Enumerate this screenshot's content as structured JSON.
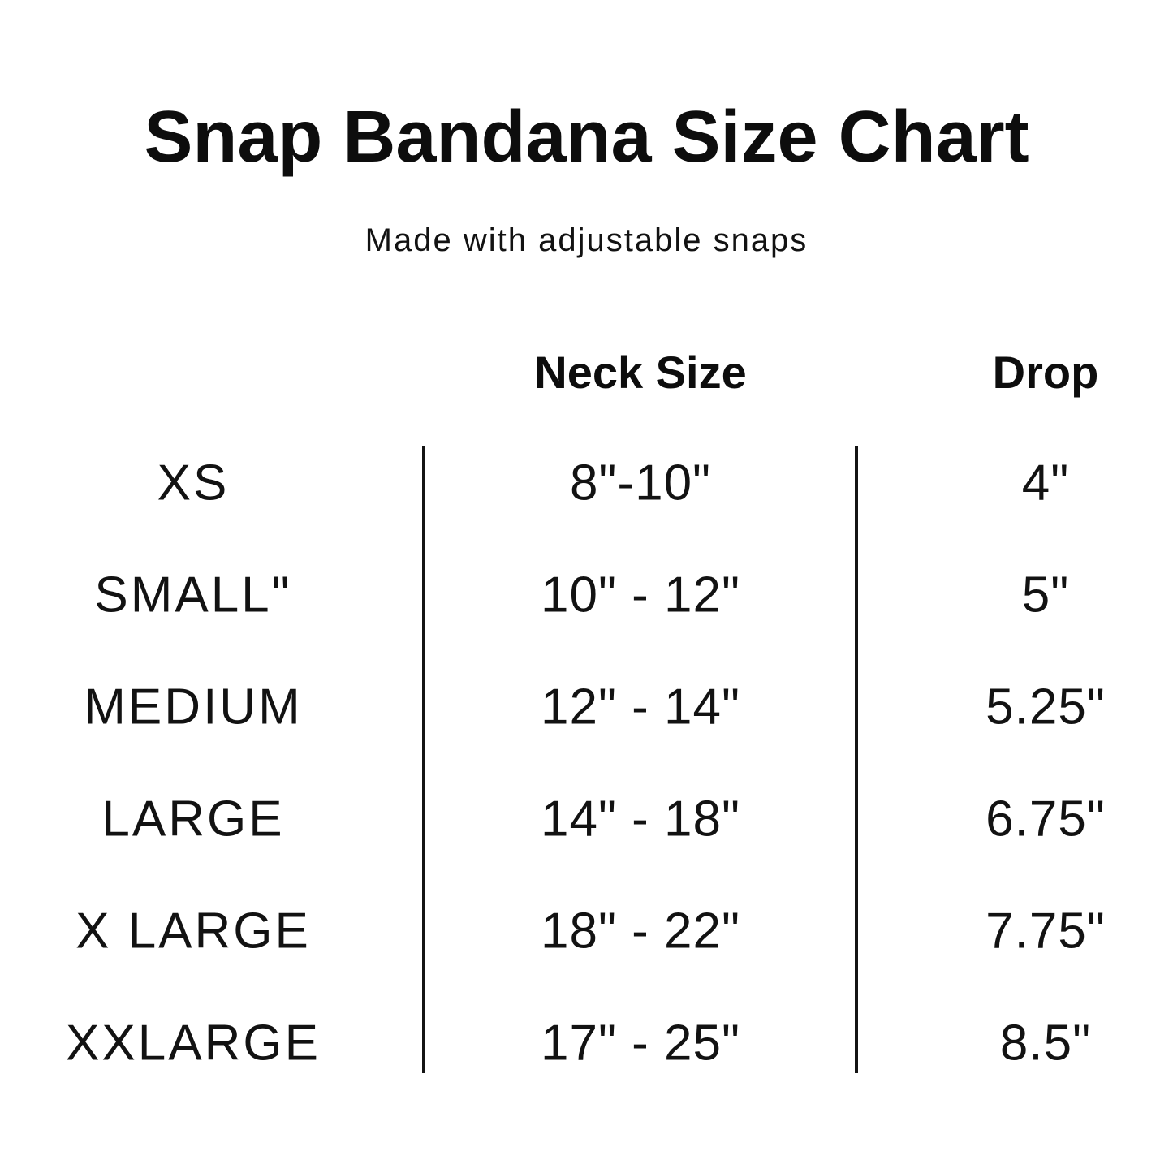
{
  "title": "Snap Bandana Size Chart",
  "subtitle": "Made with adjustable snaps",
  "colors": {
    "background": "#ffffff",
    "text": "#121212",
    "divider": "#141414"
  },
  "chart_data": {
    "type": "table",
    "columns": [
      "",
      "Neck Size",
      "Drop"
    ],
    "rows": [
      {
        "size": "XS",
        "neck_size": "8\"-10\"",
        "drop": "4\""
      },
      {
        "size": "SMALL\"",
        "neck_size": "10\" - 12\"",
        "drop": "5\""
      },
      {
        "size": "MEDIUM",
        "neck_size": "12\" - 14\"",
        "drop": "5.25\""
      },
      {
        "size": "LARGE",
        "neck_size": "14\" - 18\"",
        "drop": "6.75\""
      },
      {
        "size": "X LARGE",
        "neck_size": "18\" - 22\"",
        "drop": "7.75\""
      },
      {
        "size": "XXLARGE",
        "neck_size": "17\" - 25\"",
        "drop": "8.5\""
      }
    ],
    "layout": {
      "legend": "none",
      "grid": "two vertical column dividers only"
    }
  }
}
